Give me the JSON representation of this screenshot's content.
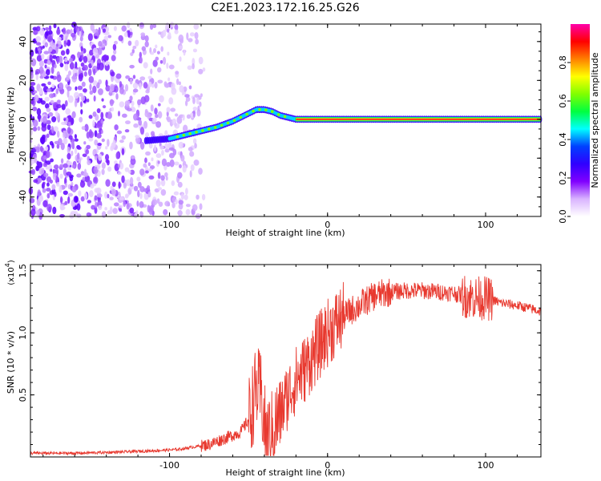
{
  "page": {
    "title": "C2E1.2023.172.16.25.G26"
  },
  "chart_data": [
    {
      "type": "heatmap",
      "xlabel": "Height of straight line (km)",
      "ylabel": "Frequency (Hz)",
      "xlim": [
        -188,
        135
      ],
      "ylim": [
        -50,
        49
      ],
      "xticks": [
        -100,
        0,
        100
      ],
      "xtick_labels": [
        "-100",
        "0",
        "100"
      ],
      "yticks": [
        -40,
        -20,
        0,
        20,
        40
      ],
      "ytick_labels": [
        "-40",
        "-20",
        "0",
        "20",
        "40"
      ],
      "colorbar": {
        "label": "Normalized spectral amplitude",
        "range": [
          0,
          1
        ],
        "ticks": [
          0.0,
          0.2,
          0.4,
          0.6,
          0.8
        ],
        "tick_labels": [
          "0.0",
          "0.2",
          "0.4",
          "0.6",
          "0.8"
        ],
        "colormap": [
          "#ffffff",
          "#d9b3ff",
          "#8000ff",
          "#3000ff",
          "#0040ff",
          "#00ffff",
          "#00ff40",
          "#80ff00",
          "#ffff00",
          "#ff8000",
          "#ff0000",
          "#ff00aa"
        ]
      },
      "ridge": {
        "x": [
          -115,
          -100,
          -90,
          -80,
          -70,
          -60,
          -50,
          -45,
          -40,
          -35,
          -30,
          -25,
          -20,
          -10,
          0,
          135
        ],
        "y": [
          -11,
          -10,
          -8,
          -6,
          -4,
          -1,
          3,
          5,
          5,
          4,
          2,
          1,
          0,
          0,
          0,
          0
        ]
      },
      "grid": false
    },
    {
      "type": "line",
      "xlabel": "Height of straight line (km)",
      "ylabel": "SNR (10 * v/v)",
      "yscale_label": "(x10",
      "yscale_exp": "4",
      "yscale_close": ")",
      "xlim": [
        -188,
        135
      ],
      "ylim": [
        0,
        1.55
      ],
      "xticks": [
        -100,
        0,
        100
      ],
      "xtick_labels": [
        "-100",
        "0",
        "100"
      ],
      "yticks": [
        0.5,
        1.0,
        1.5
      ],
      "ytick_labels": [
        "0.5",
        "1.0",
        "1.5"
      ],
      "series": [
        {
          "color": "#e8392f",
          "x": [
            -188,
            -160,
            -130,
            -110,
            -95,
            -85,
            -75,
            -65,
            -55,
            -50,
            -45,
            -42,
            -40,
            -38,
            -35,
            -30,
            -25,
            -20,
            -15,
            -10,
            -5,
            0,
            5,
            10,
            15,
            20,
            25,
            30,
            40,
            50,
            60,
            70,
            80,
            85,
            90,
            95,
            100,
            105,
            110,
            120,
            130,
            135
          ],
          "y": [
            0.03,
            0.03,
            0.04,
            0.05,
            0.06,
            0.08,
            0.1,
            0.15,
            0.2,
            0.3,
            0.55,
            0.5,
            0.25,
            0.15,
            0.2,
            0.35,
            0.5,
            0.62,
            0.7,
            0.8,
            0.9,
            1.0,
            1.07,
            1.13,
            1.18,
            1.22,
            1.26,
            1.3,
            1.33,
            1.34,
            1.34,
            1.33,
            1.32,
            1.3,
            1.29,
            1.28,
            1.28,
            1.26,
            1.24,
            1.22,
            1.19,
            1.17
          ]
        }
      ],
      "grid": false
    }
  ]
}
